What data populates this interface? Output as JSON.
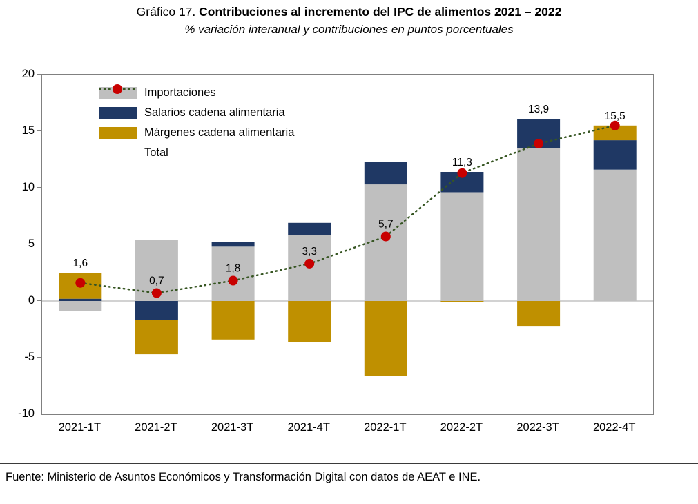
{
  "title": {
    "prefix": "Gráfico 17. ",
    "main": "Contribuciones al incremento del IPC de alimentos 2021 – 2022"
  },
  "subtitle": "% variación interanual y contribuciones en puntos porcentuales",
  "source": "Fuente: Ministerio de Asuntos Económicos y Transformación Digital con datos de AEAT e INE.",
  "chart_data": {
    "type": "bar",
    "stacked": true,
    "title": "Contribuciones al incremento del IPC de alimentos 2021 – 2022",
    "subtitle": "% variación interanual y contribuciones en puntos porcentuales",
    "categories": [
      "2021-1T",
      "2021-2T",
      "2021-3T",
      "2021-4T",
      "2022-1T",
      "2022-2T",
      "2022-3T",
      "2022-4T"
    ],
    "series": [
      {
        "name": "Importaciones",
        "color": "#bfbfbf",
        "values": [
          -0.9,
          5.4,
          4.8,
          5.8,
          10.3,
          9.6,
          13.5,
          11.6
        ]
      },
      {
        "name": "Salarios cadena alimentaria",
        "color": "#1f3864",
        "values": [
          0.2,
          -1.7,
          0.4,
          1.1,
          2.0,
          1.8,
          2.6,
          2.6
        ]
      },
      {
        "name": "Márgenes cadena alimentaria",
        "color": "#bf9000",
        "values": [
          2.3,
          -3.0,
          -3.4,
          -3.6,
          -6.6,
          -0.1,
          -2.2,
          1.3
        ]
      }
    ],
    "line_series": {
      "name": "Total",
      "color": "#375623",
      "marker_color": "#c80000",
      "values": [
        1.6,
        0.7,
        1.8,
        3.3,
        5.7,
        11.3,
        13.9,
        15.5
      ],
      "labels": [
        "1,6",
        "0,7",
        "1,8",
        "3,3",
        "5,7",
        "11,3",
        "13,9",
        "15,5"
      ]
    },
    "ylim": [
      -10,
      20
    ],
    "yticks": [
      20,
      15,
      10,
      5,
      0,
      -5,
      -10
    ],
    "xlabel": "",
    "ylabel": "",
    "grid": false,
    "legend_position": "top-left-inside"
  }
}
